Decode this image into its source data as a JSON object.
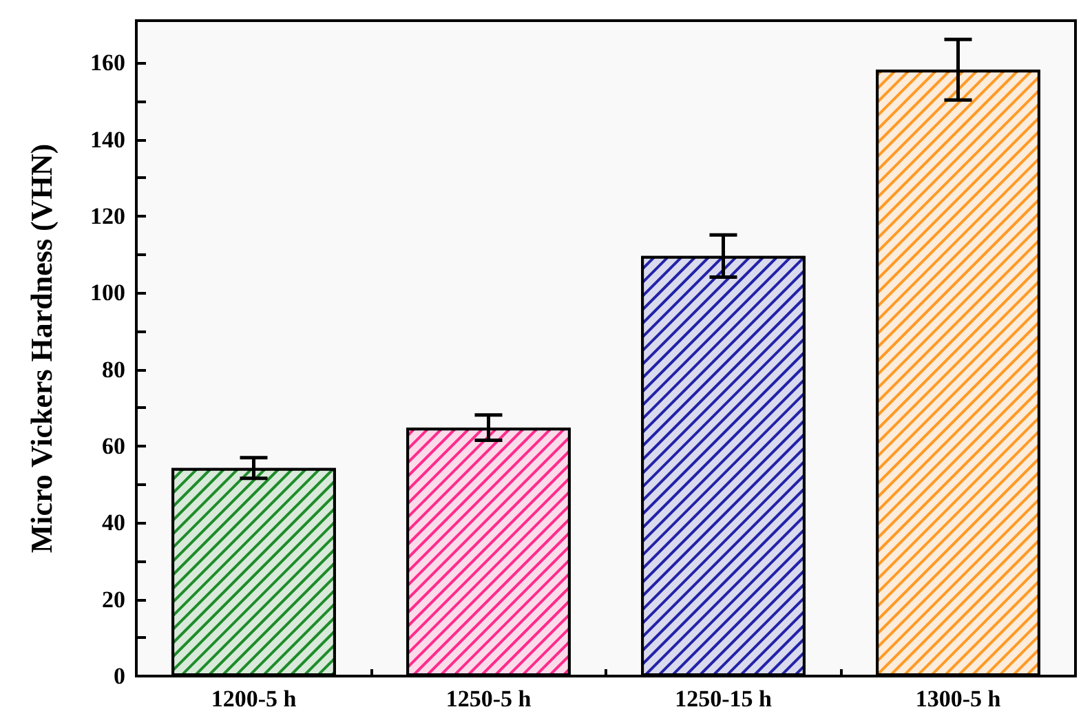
{
  "chart_data": {
    "type": "bar",
    "ylabel": "Micro Vickers Hardness (VHN)",
    "categories": [
      "1200-5 h",
      "1250-5 h",
      "1250-15 h",
      "1300-5 h"
    ],
    "values": [
      54.3,
      64.8,
      109.6,
      158.2
    ],
    "errors": [
      2.7,
      3.3,
      5.5,
      7.9
    ],
    "colors": [
      "#1e8c2a",
      "#ff2b8c",
      "#2222a8",
      "#ff9a26"
    ],
    "ylim": [
      0,
      171
    ],
    "yticks": [
      0,
      {
        "value": 10,
        "label": null
      },
      20,
      {
        "value": 30,
        "label": null
      },
      40,
      {
        "value": 50,
        "label": null
      },
      60,
      {
        "value": 70,
        "label": null
      },
      80,
      {
        "value": 90,
        "label": null
      },
      100,
      {
        "value": 110,
        "label": null
      },
      120,
      {
        "value": 130,
        "label": null
      },
      140,
      {
        "value": 150,
        "label": null
      },
      160
    ],
    "grid": false
  }
}
